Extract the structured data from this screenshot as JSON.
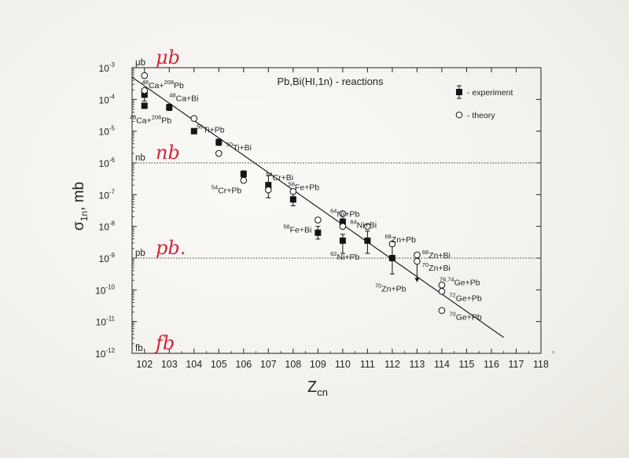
{
  "chart_data": {
    "type": "scatter",
    "title": "Pb,Bi(HI,1n) - reactions",
    "xlabel": "Z",
    "xlabel_sub": "cn",
    "ylabel": "σ",
    "ylabel_sub": "1n",
    "ylabel_unit": ", mb",
    "xlim": [
      101.5,
      118
    ],
    "ylim_log10": [
      -12,
      -3
    ],
    "x_ticks": [
      "102",
      "103",
      "104",
      "105",
      "106",
      "107",
      "108",
      "109",
      "110",
      "111",
      "112",
      "113",
      "114",
      "115",
      "116",
      "117",
      "118"
    ],
    "y_ticks": [
      {
        "exp": -3,
        "base": "10",
        "sup": "-3"
      },
      {
        "exp": -4,
        "base": "10",
        "sup": "-4"
      },
      {
        "exp": -5,
        "base": "10",
        "sup": "-5"
      },
      {
        "exp": -6,
        "base": "10",
        "sup": "-6"
      },
      {
        "exp": -7,
        "base": "10",
        "sup": "-7"
      },
      {
        "exp": -8,
        "base": "10",
        "sup": "-8"
      },
      {
        "exp": -9,
        "base": "10",
        "sup": "-9"
      },
      {
        "exp": -10,
        "base": "10",
        "sup": "-10"
      },
      {
        "exp": -11,
        "base": "10",
        "sup": "-11"
      },
      {
        "exp": -12,
        "base": "10",
        "sup": "-12"
      }
    ],
    "unit_lines": [
      {
        "label": "μb",
        "log10": -3,
        "dotted": false,
        "hand": "μb"
      },
      {
        "label": "nb",
        "log10": -6,
        "dotted": true,
        "hand": "nb"
      },
      {
        "label": "pb",
        "log10": -9,
        "dotted": true,
        "hand": "pb."
      },
      {
        "label": "fb",
        "log10": -12,
        "dotted": false,
        "hand": "fb"
      }
    ],
    "legend": {
      "experiment": "- experiment",
      "theory": "- theory",
      "position": "top-right"
    },
    "trend_line": {
      "x": [
        101.5,
        116.5
      ],
      "log10": [
        -3.3,
        -11.5
      ]
    },
    "series": [
      {
        "name": "experiment",
        "marker": "filled-square",
        "points": [
          {
            "x": 102,
            "log10": -3.85,
            "err_lo": 0.2,
            "err_hi": 0.2
          },
          {
            "x": 102,
            "log10": -4.2,
            "err_lo": 0,
            "err_hi": 0
          },
          {
            "x": 103,
            "log10": -4.25,
            "err_lo": 0.1,
            "err_hi": 0.1
          },
          {
            "x": 104,
            "log10": -5.0,
            "err_lo": 0,
            "err_hi": 0
          },
          {
            "x": 105,
            "log10": -5.35,
            "err_lo": 0.1,
            "err_hi": 0.1
          },
          {
            "x": 106,
            "log10": -6.35,
            "err_lo": 0.1,
            "err_hi": 0.1
          },
          {
            "x": 107,
            "log10": -6.7,
            "err_lo": 0.4,
            "err_hi": 0.3
          },
          {
            "x": 108,
            "log10": -7.15,
            "err_lo": 0.2,
            "err_hi": 0.2
          },
          {
            "x": 109,
            "log10": -8.2,
            "err_lo": 0.2,
            "err_hi": 0.2
          },
          {
            "x": 110,
            "log10": -7.85,
            "err_lo": 0.2,
            "err_hi": 0.2
          },
          {
            "x": 110,
            "log10": -8.45,
            "err_lo": 0.4,
            "err_hi": 0.2
          },
          {
            "x": 111,
            "log10": -8.45,
            "err_lo": 0.4,
            "err_hi": 0.3
          },
          {
            "x": 112,
            "log10": -9.0,
            "err_lo": 0.5,
            "err_hi": 0.4
          }
        ]
      },
      {
        "name": "theory",
        "marker": "open-circle",
        "points": [
          {
            "x": 102,
            "log10": -3.25
          },
          {
            "x": 102,
            "log10": -3.72
          },
          {
            "x": 104,
            "log10": -4.6
          },
          {
            "x": 105,
            "log10": -5.7
          },
          {
            "x": 106,
            "log10": -6.55
          },
          {
            "x": 107,
            "log10": -6.85
          },
          {
            "x": 108,
            "log10": -6.9
          },
          {
            "x": 109,
            "log10": -7.8
          },
          {
            "x": 110,
            "log10": -7.6
          },
          {
            "x": 110,
            "log10": -8.0
          },
          {
            "x": 111,
            "log10": -8.0
          },
          {
            "x": 112,
            "log10": -8.55
          },
          {
            "x": 113,
            "log10": -8.9
          },
          {
            "x": 113,
            "log10": -9.1
          },
          {
            "x": 114,
            "log10": -9.85
          },
          {
            "x": 114,
            "log10": -10.05
          },
          {
            "x": 114,
            "log10": -10.65
          }
        ]
      }
    ],
    "upper_limit_arrow": {
      "x": 113,
      "log10_from": -9.2,
      "log10_to": -9.75
    },
    "annotations": [
      {
        "mass": "48",
        "text": "Ca+",
        "mass2": "208",
        "text2": "Pb",
        "x": 101.9,
        "log10": -3.55
      },
      {
        "mass": "48",
        "text": "Ca+Bi",
        "x": 103.0,
        "log10": -3.95
      },
      {
        "mass": "48",
        "text": "Ca+",
        "mass2": "206",
        "text2": "Pb",
        "x": 101.4,
        "log10": -4.65
      },
      {
        "mass": "50",
        "text": "Ti+Pb",
        "x": 104.1,
        "log10": -4.95
      },
      {
        "mass": "50",
        "text": "Ti+Bi",
        "x": 105.3,
        "log10": -5.5
      },
      {
        "mass": "54",
        "text": "Cr+Bi",
        "x": 106.9,
        "log10": -6.45
      },
      {
        "mass": "54",
        "text": "Cr+Pb",
        "x": 104.7,
        "log10": -6.85
      },
      {
        "mass": "58",
        "text": "Fe+Pb",
        "x": 107.8,
        "log10": -6.75
      },
      {
        "mass": "58",
        "text": "Fe+Bi",
        "x": 107.6,
        "log10": -8.1
      },
      {
        "mass": "64",
        "text": "Ni+Pb",
        "x": 109.5,
        "log10": -7.6
      },
      {
        "mass": "64",
        "text": "Ni+Bi",
        "x": 110.3,
        "log10": -7.95
      },
      {
        "mass": "62",
        "text": "Ni+Pb",
        "x": 109.5,
        "log10": -8.95
      },
      {
        "mass": "68",
        "text": "Zn+Pb",
        "x": 111.7,
        "log10": -8.4
      },
      {
        "mass": "70",
        "text": "Zn+Pb",
        "x": 111.3,
        "log10": -9.95
      },
      {
        "mass": "68",
        "text": "Zn+Bi",
        "x": 113.2,
        "log10": -8.9
      },
      {
        "mass": "70",
        "text": "Zn+Bi",
        "x": 113.2,
        "log10": -9.3
      },
      {
        "mass": "76,74",
        "text": "Ge+Pb",
        "x": 113.9,
        "log10": -9.75
      },
      {
        "mass": "72",
        "text": "Ge+Pb",
        "x": 114.3,
        "log10": -10.25
      },
      {
        "mass": "70",
        "text": "Ge+Pb",
        "x": 114.3,
        "log10": -10.85
      }
    ]
  }
}
